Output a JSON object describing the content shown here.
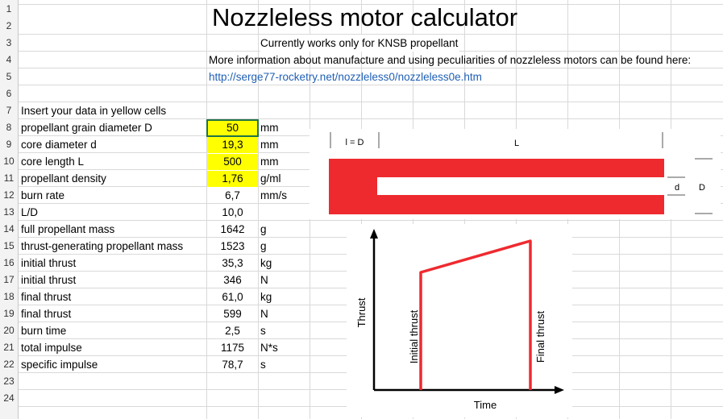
{
  "sheet": {
    "row_numbers": [
      "1",
      "2",
      "3",
      "4",
      "5",
      "6",
      "7",
      "8",
      "9",
      "10",
      "11",
      "12",
      "13",
      "14",
      "15",
      "16",
      "17",
      "18",
      "19",
      "20",
      "21",
      "22",
      "23",
      "24"
    ],
    "title": "Nozzleless motor calculator",
    "subtitle": "Currently works only for KNSB propellant",
    "info_text": "More information about manufacture and using peculiarities of  nozzleless motors can be found here:",
    "info_link": "http://serge77-rocketry.net/nozzleless0/nozzleless0e.htm",
    "instruction": "Insert your data in yellow cells",
    "rows": [
      {
        "label": "propellant grain diameter  D",
        "value": "50",
        "unit": "mm",
        "input": true
      },
      {
        "label": "core diameter  d",
        "value": "19,3",
        "unit": "mm",
        "input": true
      },
      {
        "label": "core length  L",
        "value": "500",
        "unit": "mm",
        "input": true
      },
      {
        "label": "propellant density",
        "value": "1,76",
        "unit": "g/ml",
        "input": true
      },
      {
        "label": "burn rate",
        "value": "6,7",
        "unit": "mm/s",
        "input": false
      },
      {
        "label": "L/D",
        "value": "10,0",
        "unit": "",
        "input": false
      },
      {
        "label": "full propellant mass",
        "value": "1642",
        "unit": "g",
        "input": false
      },
      {
        "label": "thrust-generating propellant mass",
        "value": "1523",
        "unit": "g",
        "input": false
      },
      {
        "label": "initial thrust",
        "value": "35,3",
        "unit": "kg",
        "input": false
      },
      {
        "label": "initial thrust",
        "value": "346",
        "unit": "N",
        "input": false
      },
      {
        "label": "final thrust",
        "value": "61,0",
        "unit": "kg",
        "input": false
      },
      {
        "label": "final thrust",
        "value": "599",
        "unit": "N",
        "input": false
      },
      {
        "label": "burn time",
        "value": "2,5",
        "unit": "s",
        "input": false
      },
      {
        "label": "total impulse",
        "value": "1175",
        "unit": "N*s",
        "input": false
      },
      {
        "label": "specific impulse",
        "value": "78,7",
        "unit": "s",
        "input": false
      }
    ]
  },
  "grain_diagram": {
    "l_eq_d_label": "l = D",
    "length_label": "L",
    "core_label": "d",
    "diameter_label": "D",
    "grain_color": "#ee2a2f"
  },
  "thrust_diagram": {
    "y_axis_label": "Thrust",
    "x_axis_label": "Time",
    "initial_label": "Initial thrust",
    "final_label": "Final thrust",
    "curve_color": "#ee2a2f"
  }
}
